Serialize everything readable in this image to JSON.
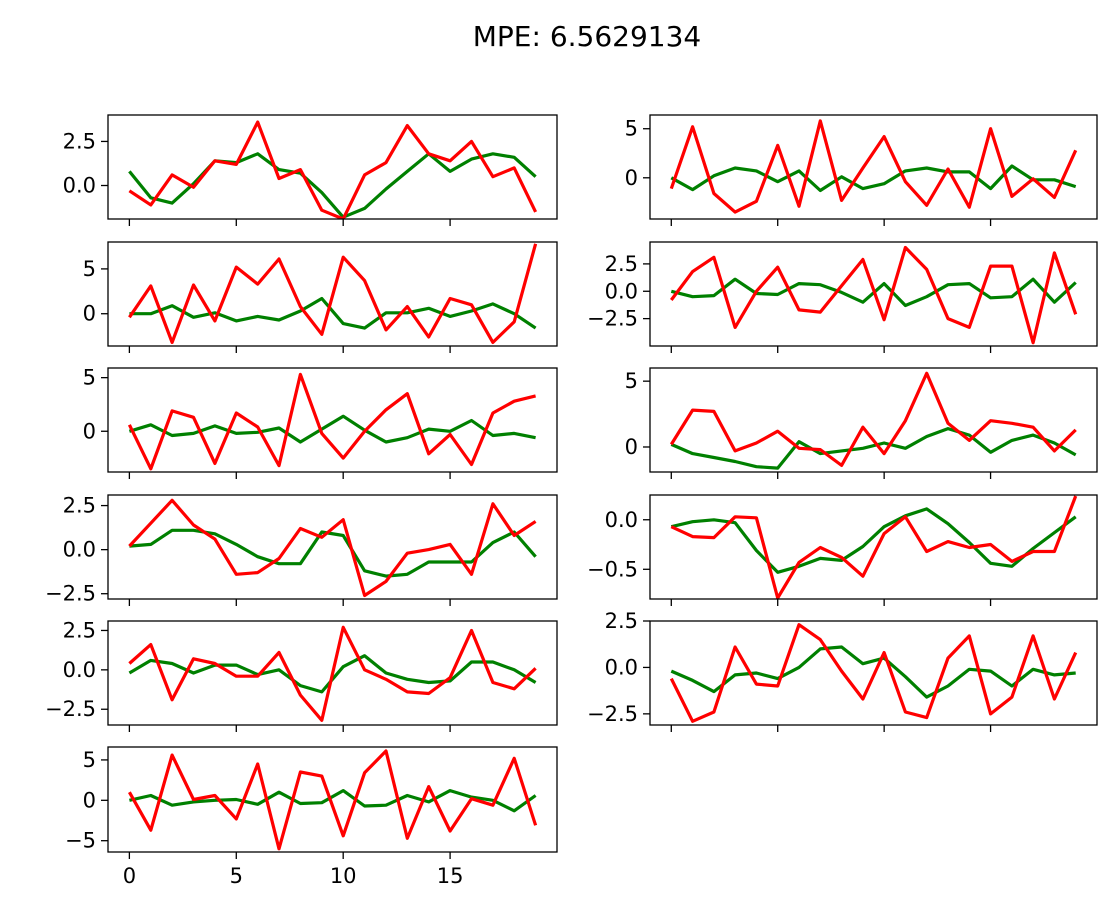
{
  "chart_data": {
    "type": "line",
    "title": "MPE: 6.5629134",
    "x": [
      0,
      1,
      2,
      3,
      4,
      5,
      6,
      7,
      8,
      9,
      10,
      11,
      12,
      13,
      14,
      15,
      16,
      17,
      18,
      19
    ],
    "x_ticks": [
      0,
      5,
      10,
      15
    ],
    "x_tick_labels": [
      "0",
      "5",
      "10",
      "15"
    ],
    "colors": {
      "green": "#008000",
      "red": "#ff0000"
    },
    "grid": false,
    "layout": "6 rows x 2 columns",
    "subplots": [
      {
        "ylim": [
          -1.9,
          4.0
        ],
        "yticks": [
          0.0,
          2.5
        ],
        "ytick_labels": [
          "0.0",
          "2.5"
        ],
        "green": [
          0.8,
          -0.7,
          -1.0,
          0.1,
          1.4,
          1.3,
          1.8,
          0.9,
          0.7,
          -0.4,
          -1.8,
          -1.3,
          -0.2,
          0.8,
          1.8,
          0.8,
          1.5,
          1.8,
          1.6,
          0.5
        ],
        "red": [
          -0.3,
          -1.1,
          0.6,
          -0.1,
          1.4,
          1.2,
          3.6,
          0.4,
          0.9,
          -1.4,
          -1.9,
          0.6,
          1.3,
          3.4,
          1.8,
          1.4,
          2.5,
          0.5,
          1.0,
          -1.5
        ]
      },
      {
        "ylim": [
          -4.2,
          6.4
        ],
        "yticks": [
          0,
          5
        ],
        "ytick_labels": [
          "0",
          "5"
        ],
        "green": [
          0.0,
          -1.2,
          0.2,
          1.0,
          0.7,
          -0.4,
          0.7,
          -1.3,
          0.1,
          -1.1,
          -0.6,
          0.7,
          1.0,
          0.6,
          0.6,
          -1.1,
          1.2,
          -0.2,
          -0.2,
          -0.9
        ],
        "red": [
          -1.1,
          5.2,
          -1.6,
          -3.5,
          -2.4,
          3.3,
          -2.9,
          5.8,
          -2.3,
          1.0,
          4.2,
          -0.4,
          -2.8,
          0.9,
          -3.0,
          5.0,
          -1.9,
          -0.1,
          -2.0,
          2.8
        ]
      },
      {
        "ylim": [
          -3.6,
          8.0
        ],
        "yticks": [
          0,
          5
        ],
        "ytick_labels": [
          "0",
          "5"
        ],
        "green": [
          0.0,
          0.0,
          0.9,
          -0.4,
          0.1,
          -0.8,
          -0.3,
          -0.7,
          0.3,
          1.7,
          -1.1,
          -1.6,
          0.1,
          0.1,
          0.6,
          -0.3,
          0.3,
          1.1,
          0.0,
          -1.6
        ],
        "red": [
          -0.4,
          3.1,
          -3.2,
          3.2,
          -0.8,
          5.2,
          3.3,
          6.1,
          0.8,
          -2.3,
          6.3,
          3.7,
          -1.8,
          0.8,
          -2.6,
          1.7,
          1.0,
          -3.2,
          -0.9,
          7.8
        ]
      },
      {
        "ylim": [
          -5.0,
          4.5
        ],
        "yticks": [
          -2.5,
          0.0,
          2.5
        ],
        "ytick_labels": [
          "−2.5",
          "0.0",
          "2.5"
        ],
        "green": [
          0.0,
          -0.5,
          -0.4,
          1.1,
          -0.2,
          -0.3,
          0.7,
          0.6,
          -0.1,
          -1.0,
          0.7,
          -1.3,
          -0.5,
          0.6,
          0.7,
          -0.6,
          -0.5,
          1.1,
          -1.0,
          0.8
        ],
        "red": [
          -0.8,
          1.8,
          3.1,
          -3.3,
          0.0,
          2.2,
          -1.7,
          -1.9,
          0.5,
          2.9,
          -2.6,
          4.0,
          2.0,
          -2.5,
          -3.3,
          2.3,
          2.3,
          -4.7,
          3.5,
          -2.1
        ]
      },
      {
        "ylim": [
          -3.8,
          5.9
        ],
        "yticks": [
          0,
          5
        ],
        "ytick_labels": [
          "0",
          "5"
        ],
        "green": [
          0.0,
          0.6,
          -0.4,
          -0.2,
          0.5,
          -0.2,
          -0.1,
          0.3,
          -1.0,
          0.2,
          1.4,
          0.1,
          -1.0,
          -0.6,
          0.2,
          0.0,
          1.0,
          -0.4,
          -0.2,
          -0.6
        ],
        "red": [
          0.6,
          -3.5,
          1.9,
          1.3,
          -3.0,
          1.7,
          0.4,
          -3.2,
          5.3,
          -0.2,
          -2.5,
          0.0,
          2.0,
          3.5,
          -2.1,
          -0.3,
          -3.1,
          1.7,
          2.8,
          3.3
        ]
      },
      {
        "ylim": [
          -1.9,
          6.0
        ],
        "yticks": [
          0,
          5
        ],
        "ytick_labels": [
          "0",
          "5"
        ],
        "green": [
          0.2,
          -0.5,
          -0.8,
          -1.1,
          -1.5,
          -1.6,
          0.4,
          -0.5,
          -0.3,
          -0.1,
          0.3,
          -0.1,
          0.8,
          1.4,
          0.9,
          -0.4,
          0.5,
          0.9,
          0.3,
          -0.6
        ],
        "red": [
          0.2,
          2.8,
          2.7,
          -0.3,
          0.3,
          1.2,
          -0.1,
          -0.2,
          -1.4,
          1.5,
          -0.5,
          2.0,
          5.6,
          1.8,
          0.5,
          2.0,
          1.8,
          1.5,
          -0.3,
          1.3
        ]
      },
      {
        "ylim": [
          -2.8,
          3.1
        ],
        "yticks": [
          -2.5,
          0.0,
          2.5
        ],
        "ytick_labels": [
          "−2.5",
          "0.0",
          "2.5"
        ],
        "green": [
          0.2,
          0.3,
          1.1,
          1.1,
          0.9,
          0.3,
          -0.4,
          -0.8,
          -0.8,
          1.0,
          0.8,
          -1.2,
          -1.5,
          -1.4,
          -0.7,
          -0.7,
          -0.7,
          0.4,
          1.0,
          -0.4
        ],
        "red": [
          0.2,
          1.5,
          2.8,
          1.4,
          0.6,
          -1.4,
          -1.3,
          -0.5,
          1.2,
          0.7,
          1.7,
          -2.6,
          -1.8,
          -0.2,
          0.0,
          0.3,
          -1.4,
          2.6,
          0.8,
          1.6
        ]
      },
      {
        "ylim": [
          -0.8,
          0.25
        ],
        "yticks": [
          -0.5,
          0.0
        ],
        "ytick_labels": [
          "−0.5",
          "0.0"
        ],
        "green": [
          -0.07,
          -0.02,
          0.0,
          -0.03,
          -0.31,
          -0.53,
          -0.47,
          -0.39,
          -0.41,
          -0.27,
          -0.07,
          0.04,
          0.11,
          -0.04,
          -0.23,
          -0.44,
          -0.47,
          -0.29,
          -0.13,
          0.03
        ],
        "red": [
          -0.07,
          -0.17,
          -0.18,
          0.03,
          0.02,
          -0.79,
          -0.43,
          -0.28,
          -0.38,
          -0.57,
          -0.14,
          0.03,
          -0.32,
          -0.22,
          -0.28,
          -0.25,
          -0.42,
          -0.32,
          -0.32,
          0.24
        ]
      },
      {
        "ylim": [
          -3.5,
          3.1
        ],
        "yticks": [
          -2.5,
          0.0,
          2.5
        ],
        "ytick_labels": [
          "−2.5",
          "0.0",
          "2.5"
        ],
        "green": [
          -0.2,
          0.6,
          0.4,
          -0.2,
          0.3,
          0.3,
          -0.3,
          0.0,
          -1.0,
          -1.4,
          0.2,
          0.9,
          -0.2,
          -0.6,
          -0.8,
          -0.7,
          0.5,
          0.5,
          0.0,
          -0.8
        ],
        "red": [
          0.4,
          1.6,
          -1.9,
          0.7,
          0.4,
          -0.4,
          -0.4,
          1.1,
          -1.6,
          -3.2,
          2.7,
          0.0,
          -0.6,
          -1.4,
          -1.5,
          -0.5,
          2.5,
          -0.8,
          -1.2,
          0.1
        ]
      },
      {
        "ylim": [
          -3.1,
          2.5
        ],
        "yticks": [
          -2.5,
          0.0,
          2.5
        ],
        "ytick_labels": [
          "−2.5",
          "0.0",
          "2.5"
        ],
        "green": [
          -0.2,
          -0.7,
          -1.3,
          -0.4,
          -0.3,
          -0.6,
          0.0,
          1.0,
          1.1,
          0.2,
          0.5,
          -0.5,
          -1.6,
          -1.0,
          -0.1,
          -0.2,
          -1.0,
          -0.1,
          -0.4,
          -0.3
        ],
        "red": [
          -0.6,
          -2.9,
          -2.4,
          1.1,
          -0.9,
          -1.0,
          2.3,
          1.5,
          -0.2,
          -1.7,
          0.8,
          -2.4,
          -2.7,
          0.5,
          1.7,
          -2.5,
          -1.6,
          1.7,
          -1.7,
          0.8
        ]
      },
      {
        "ylim": [
          -6.4,
          6.6
        ],
        "yticks": [
          -5,
          0,
          5
        ],
        "ytick_labels": [
          "−5",
          "0",
          "5"
        ],
        "green": [
          0.0,
          0.6,
          -0.6,
          -0.2,
          0.0,
          0.1,
          -0.5,
          1.0,
          -0.4,
          -0.3,
          1.2,
          -0.7,
          -0.6,
          0.6,
          -0.2,
          1.2,
          0.4,
          0.0,
          -1.3,
          0.6
        ],
        "red": [
          1.0,
          -3.7,
          5.6,
          0.1,
          0.6,
          -2.3,
          4.5,
          -6.0,
          3.5,
          3.0,
          -4.4,
          3.4,
          6.1,
          -4.7,
          1.7,
          -3.8,
          0.2,
          -0.6,
          5.2,
          -3.1
        ]
      }
    ]
  }
}
